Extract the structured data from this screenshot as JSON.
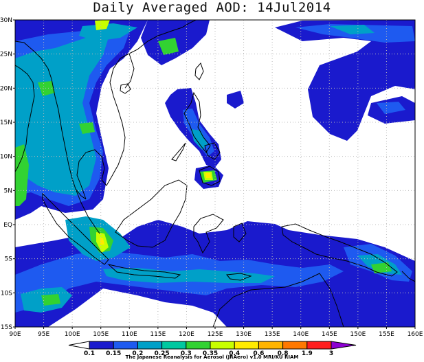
{
  "title": "Daily Averaged AOD: 14Jul2014",
  "lon_ticks": [
    "90E",
    "95E",
    "100E",
    "105E",
    "110E",
    "115E",
    "120E",
    "125E",
    "130E",
    "135E",
    "140E",
    "145E",
    "150E",
    "155E",
    "160E"
  ],
  "lat_ticks": [
    "30N",
    "25N",
    "20N",
    "15N",
    "10N",
    "5N",
    "EQ",
    "5S",
    "10S",
    "15S"
  ],
  "colorbar": {
    "labels": [
      "0.1",
      "0.15",
      "0.2",
      "0.25",
      "0.3",
      "0.35",
      "0.4",
      "0.6",
      "0.8",
      "1.9",
      "3"
    ],
    "colors": [
      "#ffffff",
      "#1a1acd",
      "#1e5af0",
      "#00a0c8",
      "#00c8a0",
      "#32d232",
      "#c8ff00",
      "#ffeb00",
      "#ffb400",
      "#ff7800",
      "#ff1e1e",
      "#8c00d2"
    ]
  },
  "credit": "The Japanese Reanalysis for Aerosol (JRAero) v1.0 MRI/KU RIAM",
  "palette": {
    "ocean_blue": "#1a1acd",
    "mid_blue": "#1e5af0",
    "teal": "#00a0c8",
    "green": "#32d232",
    "yellow_green": "#c8ff00",
    "yellow": "#ffeb00",
    "land_outline": "#000000",
    "grid": "#bbbbbb"
  }
}
